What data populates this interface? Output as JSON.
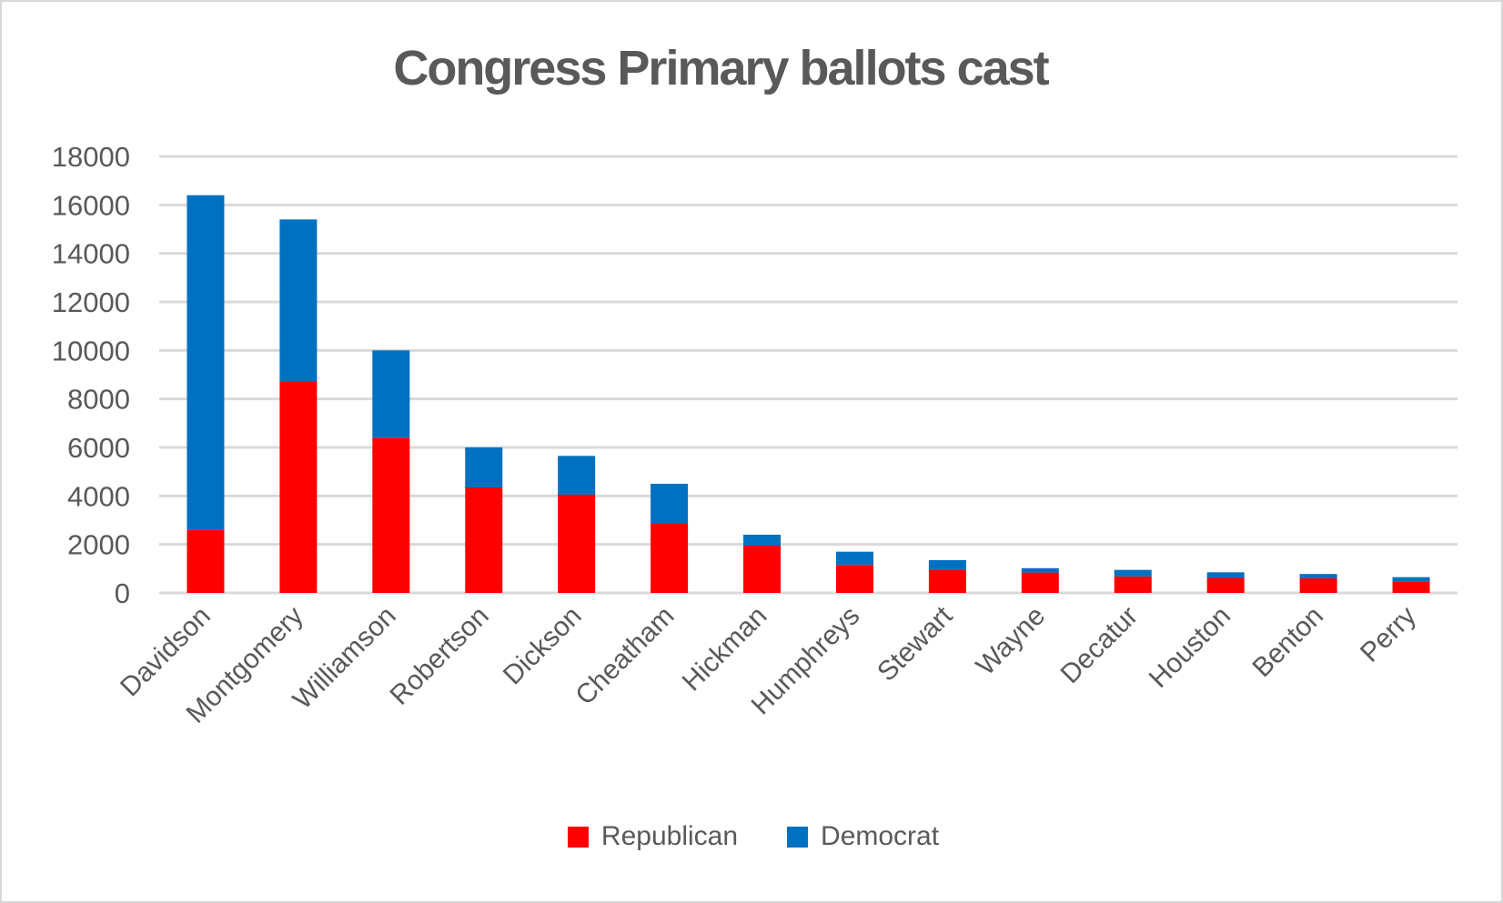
{
  "chart_data": {
    "type": "bar",
    "stacked": true,
    "title": "Congress Primary ballots cast",
    "xlabel": "",
    "ylabel": "",
    "categories": [
      "Davidson",
      "Montgomery",
      "Williamson",
      "Robertson",
      "Dickson",
      "Cheatham",
      "Hickman",
      "Humphreys",
      "Stewart",
      "Wayne",
      "Decatur",
      "Houston",
      "Benton",
      "Perry"
    ],
    "series": [
      {
        "name": "Republican",
        "color": "#FF0000",
        "values": [
          2600,
          8700,
          6400,
          4350,
          4050,
          2850,
          1950,
          1150,
          960,
          840,
          680,
          620,
          600,
          480
        ]
      },
      {
        "name": "Democrat",
        "color": "#0070C0",
        "values": [
          13800,
          6700,
          3600,
          1650,
          1600,
          1650,
          450,
          550,
          390,
          180,
          270,
          230,
          180,
          170
        ]
      }
    ],
    "ylim": [
      0,
      18000
    ],
    "ytick_step": 2000,
    "yticks": [
      0,
      2000,
      4000,
      6000,
      8000,
      10000,
      12000,
      14000,
      16000,
      18000
    ],
    "grid": "horizontal",
    "legend_position": "bottom",
    "x_label_rotation_deg": 45
  },
  "styles": {
    "text_color": "#595959",
    "gridline_color": "#D9D9D9",
    "background": "#FFFFFF",
    "border_color": "#D8D8D8"
  }
}
